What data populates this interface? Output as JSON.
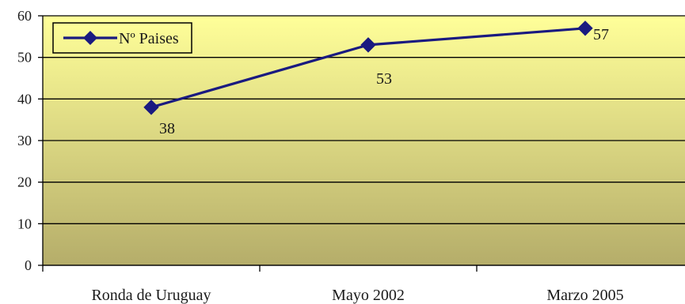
{
  "chart_data": {
    "type": "line",
    "categories": [
      "Ronda de Uruguay",
      "Mayo 2002",
      "Marzo 2005"
    ],
    "series": [
      {
        "name": "Nº Paises",
        "values": [
          38,
          53,
          57
        ],
        "color": "#1a1a80",
        "marker": "diamond"
      }
    ],
    "data_labels": [
      "38",
      "53",
      "57"
    ],
    "ylim": [
      0,
      60
    ],
    "yticks": [
      0,
      10,
      20,
      30,
      40,
      50,
      60
    ],
    "grid": true,
    "legend_position": "top-left",
    "plot_gradient": {
      "top": "#ffff99",
      "bottom": "#b5ad6a"
    },
    "title": "",
    "xlabel": "",
    "ylabel": ""
  }
}
